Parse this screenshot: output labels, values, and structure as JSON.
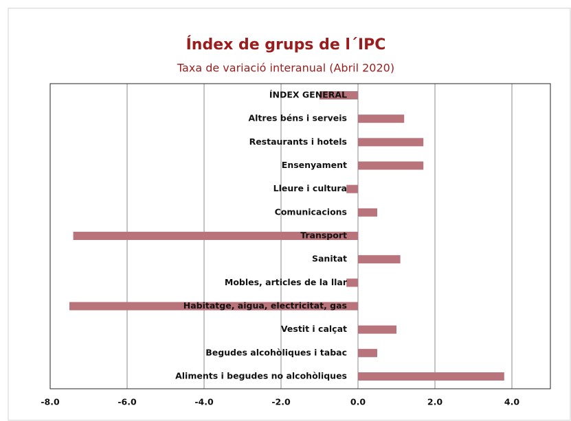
{
  "chart_data": {
    "type": "barh",
    "title": "Índex de grups de l´IPC",
    "subtitle": "Taxa de variació interanual (Abril 2020)",
    "categories": [
      "ÍNDEX GENERAL",
      "Altres béns i serveis",
      "Restaurants i hotels",
      "Ensenyament",
      "Lleure i cultura",
      "Comunicacions",
      "Transport",
      "Sanitat",
      "Mobles, articles de la llar",
      "Habitatge, aigua, electricitat, gas",
      "Vestit i calçat",
      "Begudes alcohòliques i tabac",
      "Aliments i begudes no alcohòliques"
    ],
    "values": [
      -1.0,
      1.2,
      1.7,
      1.7,
      -0.3,
      0.5,
      -7.4,
      1.1,
      -0.3,
      -7.5,
      1.0,
      0.5,
      3.8
    ],
    "color": "#b8737b",
    "xlim": [
      -8,
      5
    ],
    "xticks": [
      {
        "value": -8,
        "label": "-8.0"
      },
      {
        "value": -6,
        "label": "-6.0"
      },
      {
        "value": -4,
        "label": "-4.0"
      },
      {
        "value": -2,
        "label": "-2.0"
      },
      {
        "value": 0,
        "label": "0.0"
      },
      {
        "value": 2,
        "label": "2.0"
      },
      {
        "value": 4,
        "label": "4.0"
      }
    ],
    "grid": true
  }
}
